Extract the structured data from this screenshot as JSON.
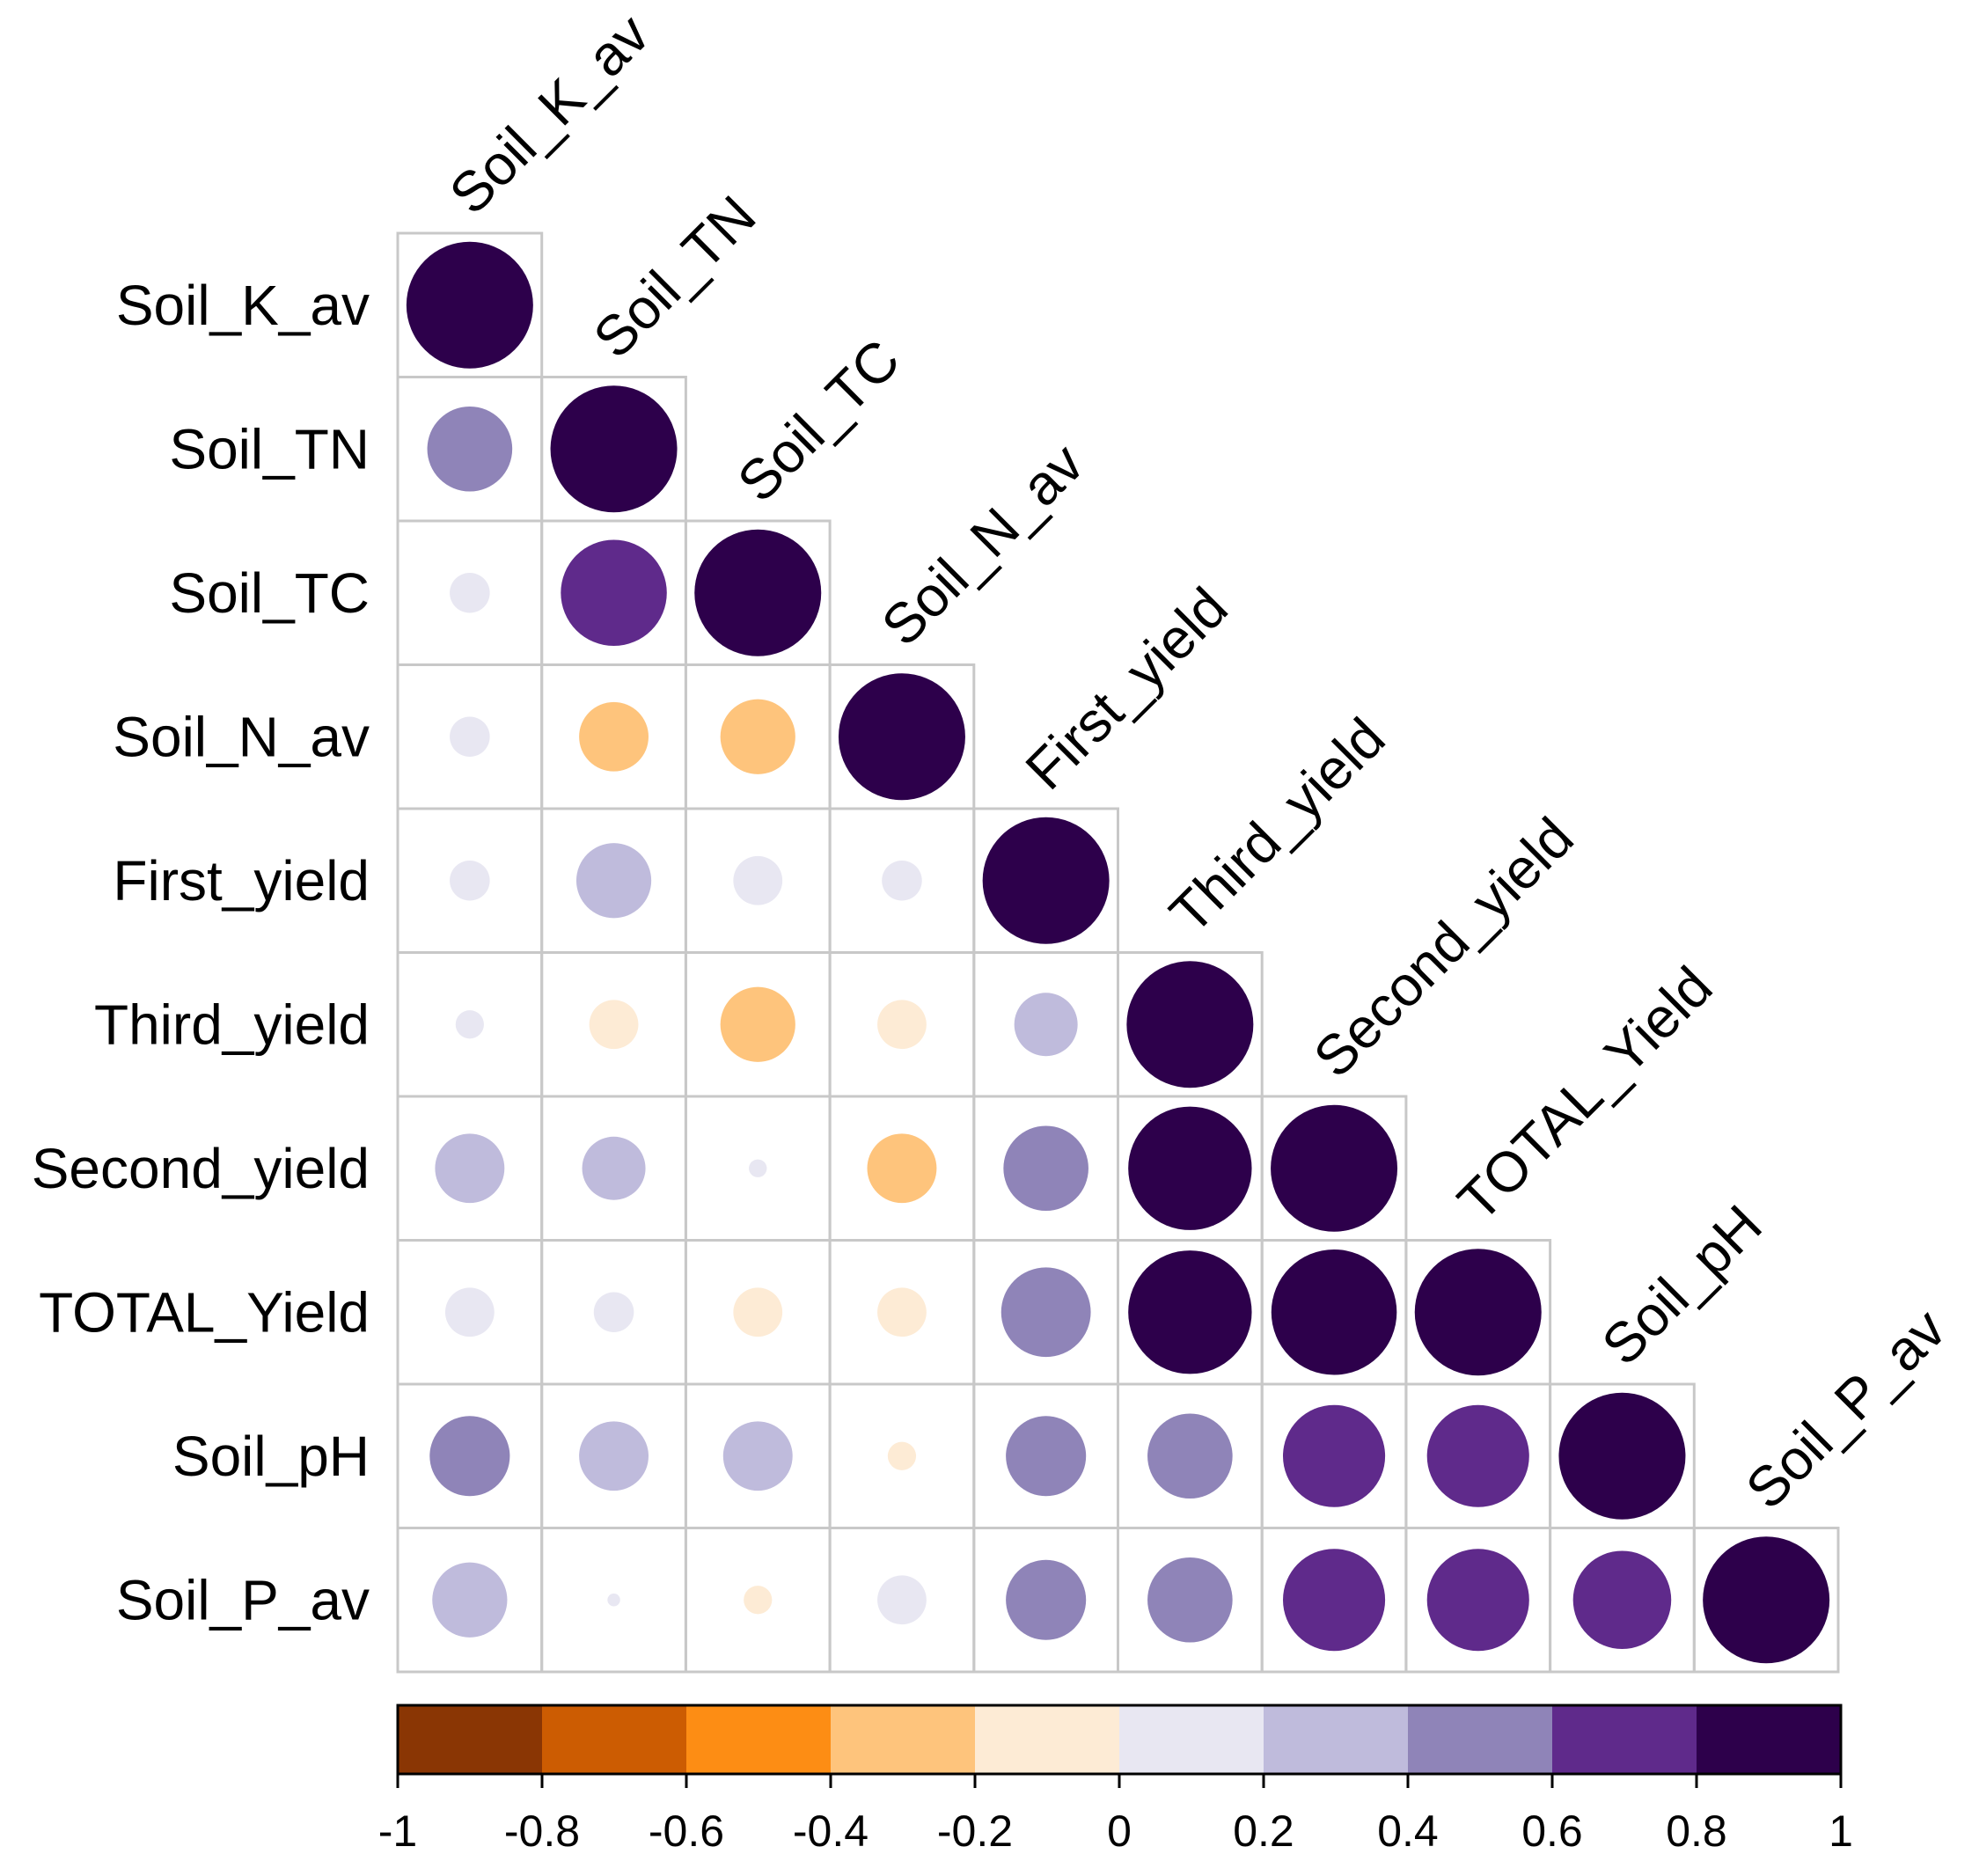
{
  "chart_data": {
    "type": "heatmap",
    "style": "correlation-circles-lower-triangle",
    "variables": [
      "Soil_K_av",
      "Soil_TN",
      "Soil_TC",
      "Soil_N_av",
      "First_yield",
      "Third_yield",
      "Second_yield",
      "TOTAL_Yield",
      "Soil_pH",
      "Soil_P_av"
    ],
    "matrix": [
      [
        1.0
      ],
      [
        0.45,
        1.0
      ],
      [
        0.1,
        0.7,
        1.0
      ],
      [
        0.1,
        -0.3,
        -0.35,
        1.0
      ],
      [
        0.1,
        0.35,
        0.15,
        0.1,
        1.0
      ],
      [
        0.05,
        -0.15,
        -0.35,
        -0.15,
        0.25,
        1.0
      ],
      [
        0.3,
        0.25,
        0.02,
        -0.3,
        0.45,
        0.95,
        1.0
      ],
      [
        0.15,
        0.1,
        -0.15,
        -0.15,
        0.5,
        0.95,
        0.98,
        1.0
      ],
      [
        0.4,
        0.3,
        0.3,
        -0.05,
        0.4,
        0.45,
        0.65,
        0.65,
        1.0
      ],
      [
        0.35,
        0.01,
        -0.05,
        0.15,
        0.4,
        0.45,
        0.65,
        0.65,
        0.6,
        1.0
      ]
    ],
    "colorbar": {
      "ticks": [
        "-1",
        "-0.8",
        "-0.6",
        "-0.4",
        "-0.2",
        "0",
        "0.2",
        "0.4",
        "0.6",
        "0.8",
        "1"
      ],
      "range": [
        -1,
        1
      ],
      "colors": [
        "#8a3604",
        "#cc5c02",
        "#fd8d14",
        "#fec47c",
        "#fdebd5",
        "#e8e7f2",
        "#bfbbdc",
        "#8f84b8",
        "#5f2a8b",
        "#2d004b"
      ]
    }
  }
}
